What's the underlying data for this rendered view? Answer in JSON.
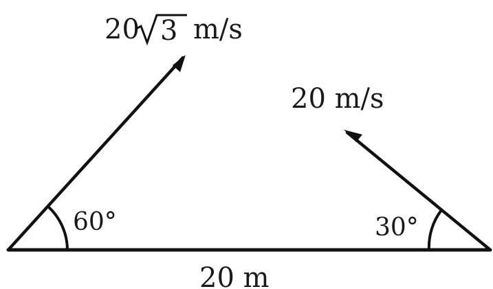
{
  "diagram": {
    "velocity_left": {
      "prefix": "20",
      "radicand": "3",
      "unit": "m/s"
    },
    "velocity_right": "20 m/s",
    "angle_left": "60°",
    "angle_right": "30°",
    "base_distance": "20 m"
  },
  "colors": {
    "ink": "#111111",
    "background": "#ffffff"
  }
}
